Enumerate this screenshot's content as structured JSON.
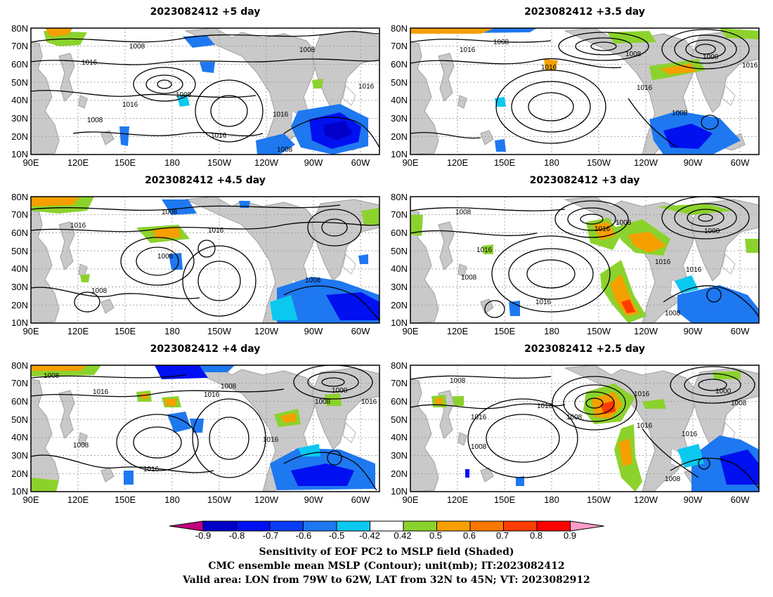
{
  "panels": [
    {
      "title": "2023082412 +5 day",
      "lead_days": 5
    },
    {
      "title": "2023082412 +3.5 day",
      "lead_days": 3.5
    },
    {
      "title": "2023082412 +4.5 day",
      "lead_days": 4.5
    },
    {
      "title": "2023082412 +3 day",
      "lead_days": 3
    },
    {
      "title": "2023082412 +4 day",
      "lead_days": 4
    },
    {
      "title": "2023082412 +2.5 day",
      "lead_days": 2.5
    }
  ],
  "axes": {
    "lon_ticks": [
      "90E",
      "120E",
      "150E",
      "180",
      "150W",
      "120W",
      "90W",
      "60W"
    ],
    "lat_ticks": [
      "10N",
      "20N",
      "30N",
      "40N",
      "50N",
      "60N",
      "70N",
      "80N"
    ]
  },
  "colorbar": {
    "ticks": [
      "-0.9",
      "-0.8",
      "-0.7",
      "-0.6",
      "-0.5",
      "-0.42",
      "0.42",
      "0.5",
      "0.6",
      "0.7",
      "0.8",
      "0.9"
    ],
    "colors": [
      "#c0007f",
      "#0000c8",
      "#0010f0",
      "#0a3cf5",
      "#1e78f0",
      "#0ac8f0",
      "#ffffff",
      "#8cd22d",
      "#f5a000",
      "#fa7800",
      "#ff3c00",
      "#ff0000",
      "#ff9ccb"
    ]
  },
  "captions": {
    "line1": "Sensitivity of EOF PC2 to MSLP field (Shaded)",
    "line2": "CMC ensemble mean MSLP (Contour); unit(mb); IT:2023082412",
    "line3": "Valid area: LON from 79W to 62W, LAT from 32N to 45N; VT: 2023082912"
  },
  "map_data": {
    "projection": "cylindrical equidistant",
    "lon_range": [
      "90E",
      "45W"
    ],
    "lat_range": [
      "10N",
      "80N"
    ],
    "contour_field": "MSLP",
    "contour_unit": "mb",
    "contour_labels": {
      "p0": [
        "1008",
        "1008",
        "1016",
        "1008",
        "1016",
        "1016",
        "1008",
        "1016",
        "1008",
        "1016"
      ],
      "p1": [
        "1008",
        "1016",
        "1008",
        "1016",
        "1000",
        "1016",
        "1016",
        "1008"
      ],
      "p2": [
        "1008",
        "1016",
        "1016",
        "1008",
        "1008",
        "1008"
      ],
      "p3": [
        "1008",
        "1016",
        "1008",
        "1016",
        "1000",
        "1016",
        "1008",
        "1016",
        "1016",
        "1008"
      ],
      "p4": [
        "1008",
        "1016",
        "1008",
        "1016",
        "1000",
        "1008",
        "1016",
        "1008",
        "1016",
        "1016"
      ],
      "p5": [
        "1008",
        "1016",
        "1016",
        "1008",
        "1016",
        "1000",
        "1016",
        "1008",
        "1016",
        "1008",
        "1008"
      ]
    }
  }
}
